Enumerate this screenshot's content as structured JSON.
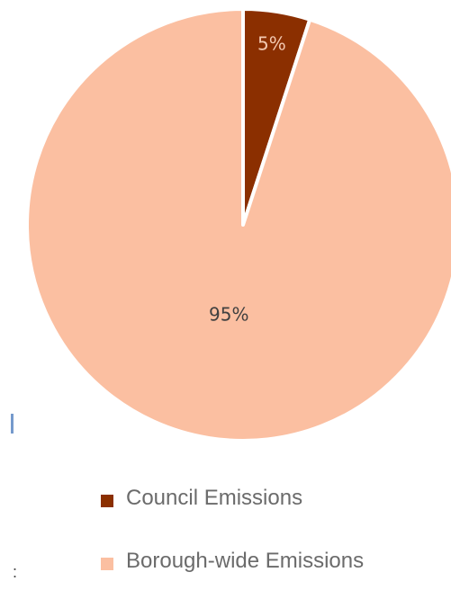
{
  "chart_data": {
    "type": "pie",
    "title": "",
    "slices": [
      {
        "name": "Council Emissions",
        "value": 5,
        "label": "5%",
        "color": "#8b2f00"
      },
      {
        "name": "Borough-wide Emissions",
        "value": 95,
        "label": "95%",
        "color": "#fbbfa1"
      }
    ],
    "legend_position": "bottom",
    "start_angle_deg": 0,
    "direction": "clockwise"
  },
  "slice_label_colors": [
    "#f3c9b0",
    "#404040"
  ],
  "stray_text": ":"
}
